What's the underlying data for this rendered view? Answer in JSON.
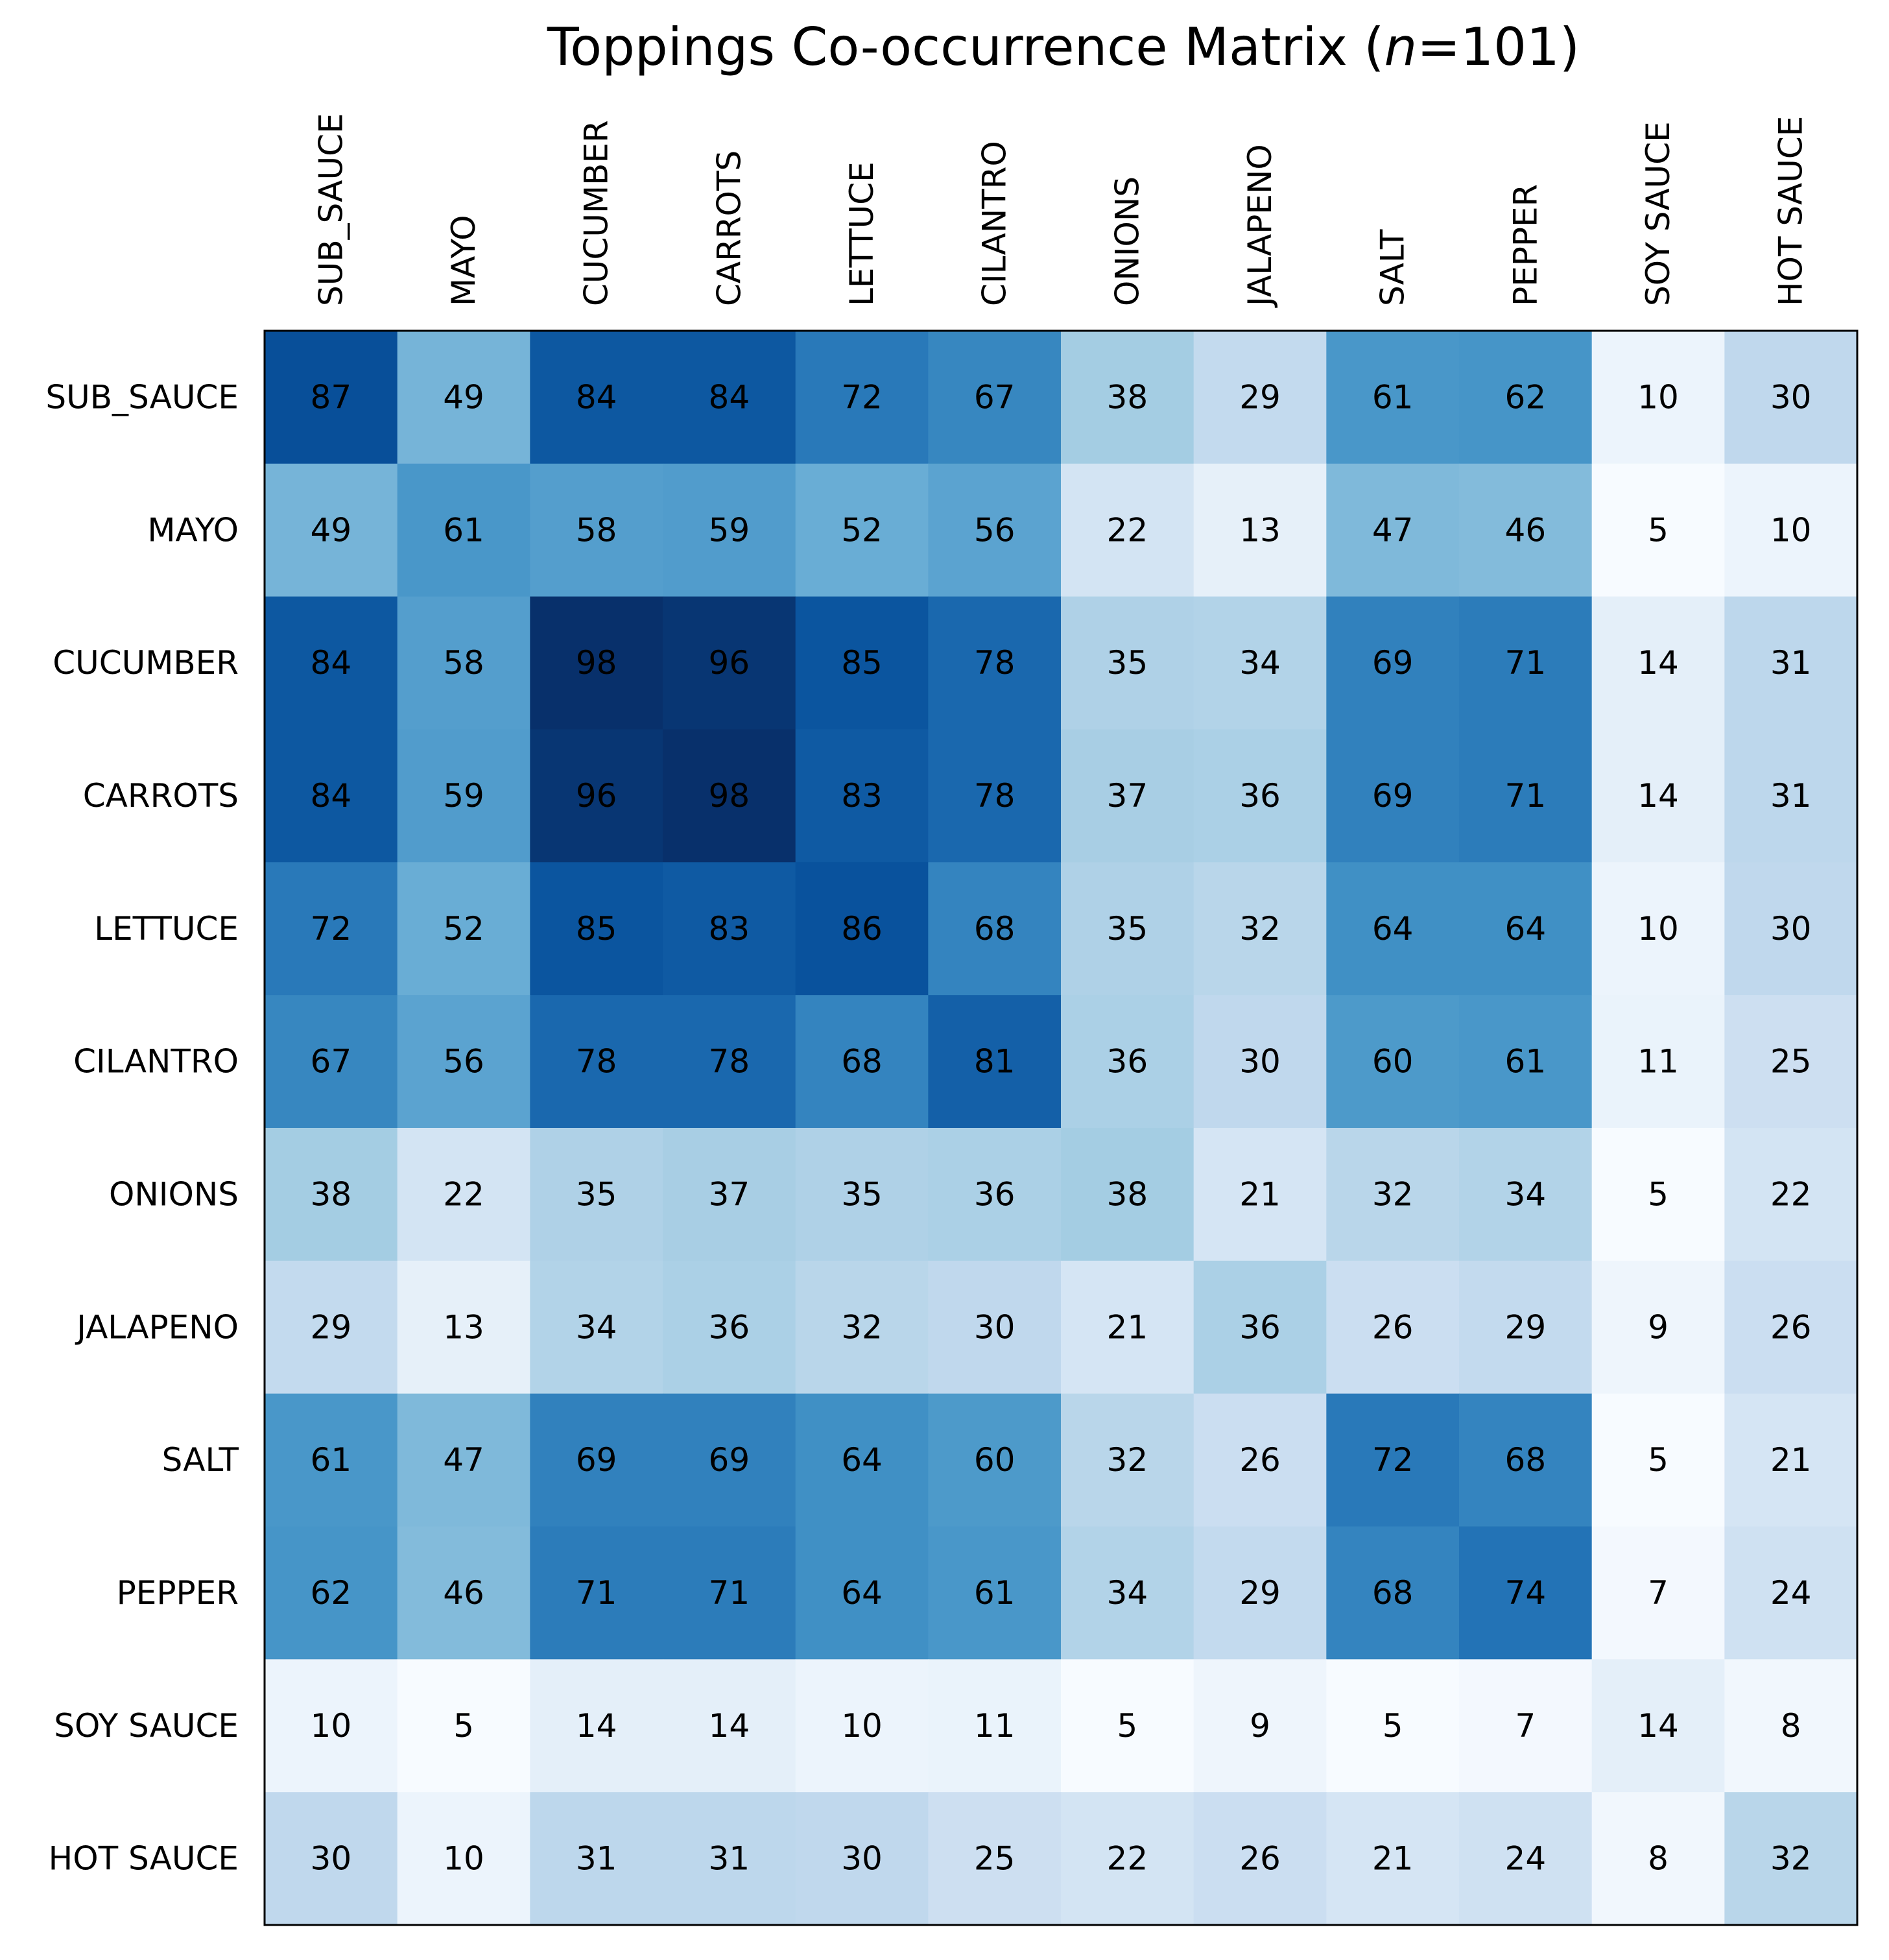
{
  "chart_data": {
    "type": "heatmap",
    "title_prefix": "Toppings Co-occurrence Matrix (",
    "title_italic": "n",
    "title_suffix": "=101)",
    "x_labels": [
      "SUB_SAUCE",
      "MAYO",
      "CUCUMBER",
      "CARROTS",
      "LETTUCE",
      "CILANTRO",
      "ONIONS",
      "JALAPENO",
      "SALT",
      "PEPPER",
      "SOY SAUCE",
      "HOT SAUCE"
    ],
    "y_labels": [
      "SUB_SAUCE",
      "MAYO",
      "CUCUMBER",
      "CARROTS",
      "LETTUCE",
      "CILANTRO",
      "ONIONS",
      "JALAPENO",
      "SALT",
      "PEPPER",
      "SOY SAUCE",
      "HOT SAUCE"
    ],
    "values": [
      [
        87,
        49,
        84,
        84,
        72,
        67,
        38,
        29,
        61,
        62,
        10,
        30
      ],
      [
        49,
        61,
        58,
        59,
        52,
        56,
        22,
        13,
        47,
        46,
        5,
        10
      ],
      [
        84,
        58,
        98,
        96,
        85,
        78,
        35,
        34,
        69,
        71,
        14,
        31
      ],
      [
        84,
        59,
        96,
        98,
        83,
        78,
        37,
        36,
        69,
        71,
        14,
        31
      ],
      [
        72,
        52,
        85,
        83,
        86,
        68,
        35,
        32,
        64,
        64,
        10,
        30
      ],
      [
        67,
        56,
        78,
        78,
        68,
        81,
        36,
        30,
        60,
        61,
        11,
        25
      ],
      [
        38,
        22,
        35,
        37,
        35,
        36,
        38,
        21,
        32,
        34,
        5,
        22
      ],
      [
        29,
        13,
        34,
        36,
        32,
        30,
        21,
        36,
        26,
        29,
        9,
        26
      ],
      [
        61,
        47,
        69,
        69,
        64,
        60,
        32,
        26,
        72,
        68,
        5,
        21
      ],
      [
        62,
        46,
        71,
        71,
        64,
        61,
        34,
        29,
        68,
        74,
        7,
        24
      ],
      [
        10,
        5,
        14,
        14,
        10,
        11,
        5,
        9,
        5,
        7,
        14,
        8
      ],
      [
        30,
        10,
        31,
        31,
        30,
        25,
        22,
        26,
        21,
        24,
        8,
        32
      ]
    ],
    "value_range": [
      5,
      98
    ],
    "colormap": "Blues",
    "x_tick_position": "top",
    "grid": false,
    "colors": {
      "cell_text": "#000000",
      "frame": "#000000"
    }
  }
}
